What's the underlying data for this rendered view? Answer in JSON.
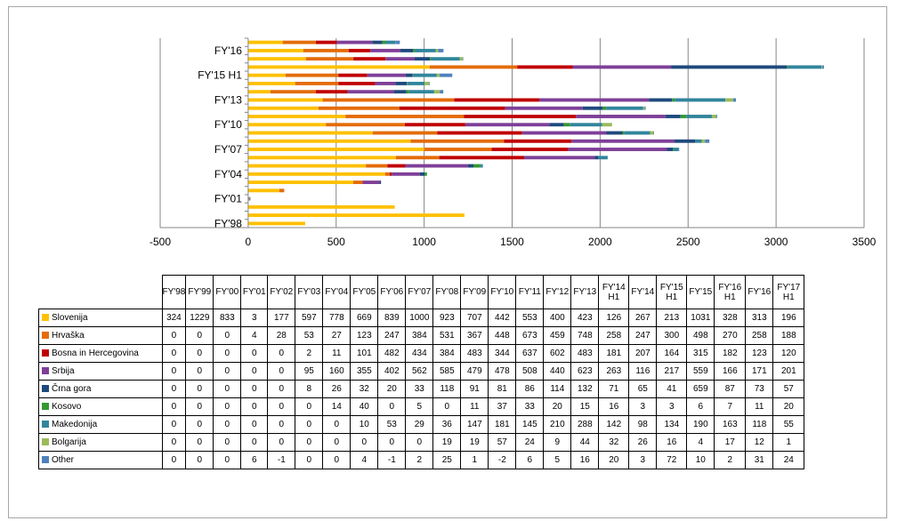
{
  "chart_data": {
    "type": "bar",
    "orientation": "horizontal",
    "stacked": true,
    "categories": [
      "FY'98",
      "FY'99",
      "FY'00",
      "FY'01",
      "FY'02",
      "FY'03",
      "FY'04",
      "FY'05",
      "FY'06",
      "FY'07",
      "FY'08",
      "FY'09",
      "FY'10",
      "FY'11",
      "FY'12",
      "FY'13",
      "FY'14 H1",
      "FY'14",
      "FY'15 H1",
      "FY'15",
      "FY'16 H1",
      "FY'16",
      "FY'17 H1"
    ],
    "y_tick_labels": [
      "FY'98",
      "FY'01",
      "FY'04",
      "FY'07",
      "FY'10",
      "FY'13",
      "FY'15 H1",
      "FY'16"
    ],
    "x_ticks": [
      "-500",
      "0",
      "500",
      "1000",
      "1500",
      "2000",
      "2500",
      "3000",
      "3500"
    ],
    "xlim": [
      -500,
      3500
    ],
    "grid": true,
    "series": [
      {
        "name": "Slovenija",
        "color": "#ffc000",
        "values": [
          324,
          1229,
          833,
          3,
          177,
          597,
          778,
          669,
          839,
          1000,
          923,
          707,
          442,
          553,
          400,
          423,
          126,
          267,
          213,
          1031,
          328,
          313,
          196
        ]
      },
      {
        "name": "Hrvaška",
        "color": "#e46c0a",
        "values": [
          0,
          0,
          0,
          4,
          28,
          53,
          27,
          123,
          247,
          384,
          531,
          367,
          448,
          673,
          459,
          748,
          258,
          247,
          300,
          498,
          270,
          258,
          188
        ]
      },
      {
        "name": "Bosna in Hercegovina",
        "color": "#c00000",
        "values": [
          0,
          0,
          0,
          0,
          0,
          2,
          11,
          101,
          482,
          434,
          384,
          483,
          344,
          637,
          602,
          483,
          181,
          207,
          164,
          315,
          182,
          123,
          120
        ]
      },
      {
        "name": "Srbija",
        "color": "#7f3f98",
        "values": [
          0,
          0,
          0,
          0,
          0,
          95,
          160,
          355,
          402,
          562,
          585,
          479,
          478,
          508,
          440,
          623,
          263,
          116,
          217,
          559,
          166,
          171,
          201
        ]
      },
      {
        "name": "Črna gora",
        "color": "#1f497d",
        "values": [
          0,
          0,
          0,
          0,
          0,
          8,
          26,
          32,
          20,
          33,
          118,
          91,
          81,
          86,
          114,
          132,
          71,
          65,
          41,
          659,
          87,
          73,
          57
        ]
      },
      {
        "name": "Kosovo",
        "color": "#339933",
        "values": [
          0,
          0,
          0,
          0,
          0,
          0,
          14,
          40,
          0,
          5,
          0,
          11,
          37,
          33,
          20,
          15,
          16,
          3,
          3,
          6,
          7,
          11,
          20
        ]
      },
      {
        "name": "Makedonija",
        "color": "#31859c",
        "values": [
          0,
          0,
          0,
          0,
          0,
          0,
          0,
          10,
          53,
          29,
          36,
          147,
          181,
          145,
          210,
          288,
          142,
          98,
          134,
          190,
          163,
          118,
          55
        ]
      },
      {
        "name": "Bolgarija",
        "color": "#9bbb59",
        "values": [
          0,
          0,
          0,
          0,
          0,
          0,
          0,
          0,
          0,
          0,
          19,
          19,
          57,
          24,
          9,
          44,
          32,
          26,
          16,
          4,
          17,
          12,
          1
        ]
      },
      {
        "name": "Other",
        "color": "#4f81bd",
        "values": [
          0,
          0,
          0,
          6,
          -1,
          0,
          0,
          4,
          -1,
          2,
          25,
          1,
          -2,
          6,
          5,
          16,
          20,
          3,
          72,
          10,
          2,
          31,
          24
        ]
      }
    ]
  },
  "table": {
    "headers": [
      {
        "line1": "FY'98",
        "line2": ""
      },
      {
        "line1": "FY'99",
        "line2": ""
      },
      {
        "line1": "FY'00",
        "line2": ""
      },
      {
        "line1": "FY'01",
        "line2": ""
      },
      {
        "line1": "FY'02",
        "line2": ""
      },
      {
        "line1": "FY'03",
        "line2": ""
      },
      {
        "line1": "FY'04",
        "line2": ""
      },
      {
        "line1": "FY'05",
        "line2": ""
      },
      {
        "line1": "FY'06",
        "line2": ""
      },
      {
        "line1": "FY'07",
        "line2": ""
      },
      {
        "line1": "FY'08",
        "line2": ""
      },
      {
        "line1": "FY'09",
        "line2": ""
      },
      {
        "line1": "FY'10",
        "line2": ""
      },
      {
        "line1": "FY'11",
        "line2": ""
      },
      {
        "line1": "FY'12",
        "line2": ""
      },
      {
        "line1": "FY'13",
        "line2": ""
      },
      {
        "line1": "FY'14",
        "line2": "H1"
      },
      {
        "line1": "FY'14",
        "line2": ""
      },
      {
        "line1": "FY'15",
        "line2": "H1"
      },
      {
        "line1": "FY'15",
        "line2": ""
      },
      {
        "line1": "FY'16",
        "line2": "H1"
      },
      {
        "line1": "FY'16",
        "line2": ""
      },
      {
        "line1": "FY'17",
        "line2": "H1"
      }
    ]
  }
}
